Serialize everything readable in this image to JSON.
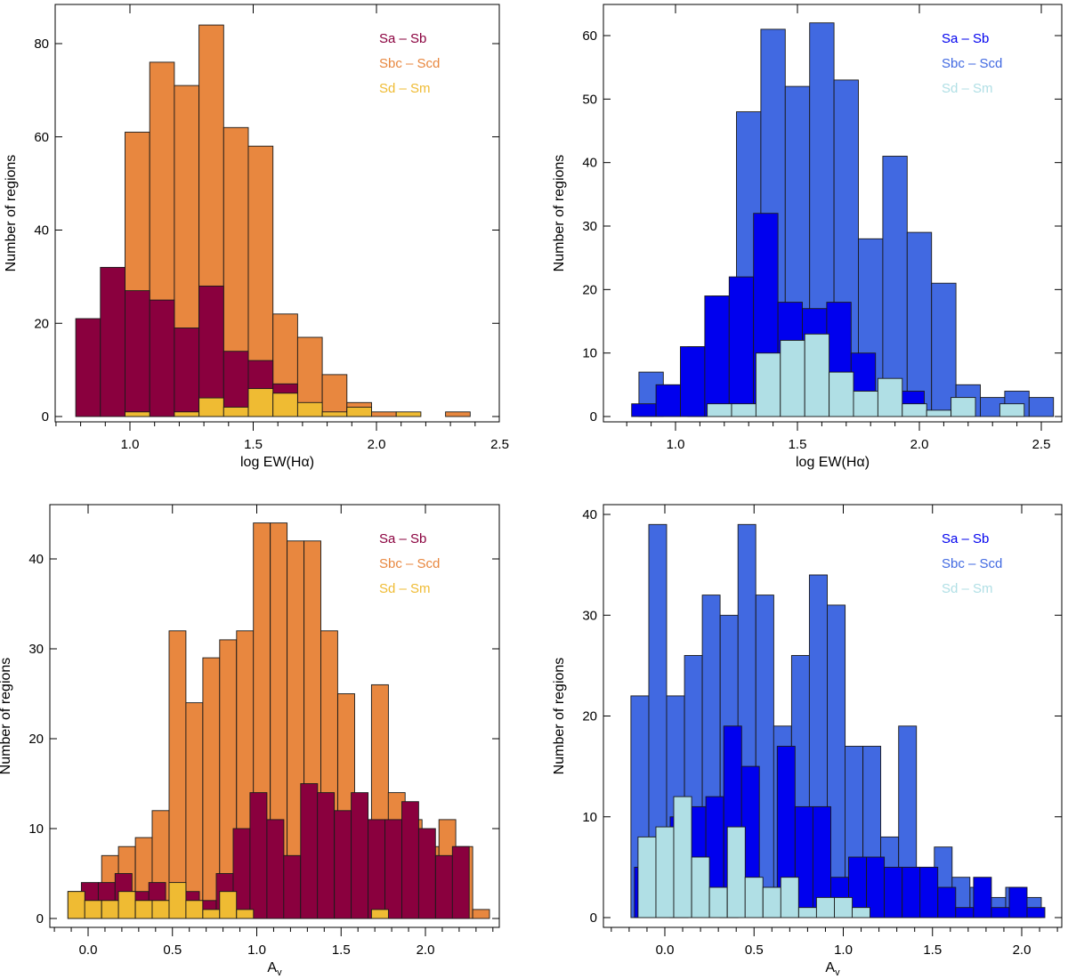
{
  "chart_data": [
    {
      "type": "bar",
      "subtype": "overlaid-histogram",
      "panel": "top-left",
      "title": "",
      "xlabel": "log EW(Hα)",
      "ylabel": "Number of regions",
      "xlim": [
        0.7,
        2.5
      ],
      "ylim": [
        0,
        88
      ],
      "xticks": [
        "1.0",
        "1.5",
        "2.0",
        "2.5"
      ],
      "xtick_values": [
        1.0,
        1.5,
        2.0,
        2.5
      ],
      "yticks": [
        "0",
        "20",
        "40",
        "60",
        "80"
      ],
      "ytick_values": [
        0,
        20,
        40,
        60,
        80
      ],
      "legend_position": "top-right",
      "series": [
        {
          "name": "Sbc – Scd",
          "color": "#E8873F",
          "bin_start": 0.98,
          "bin_width": 0.1,
          "values": [
            61,
            76,
            71,
            84,
            62,
            58,
            22,
            17,
            9,
            3,
            1,
            0,
            0,
            1
          ]
        },
        {
          "name": "Sa – Sb",
          "color": "#8A003E",
          "bin_start": 0.78,
          "bin_width": 0.1,
          "values": [
            21,
            32,
            27,
            25,
            19,
            28,
            14,
            12,
            7,
            2,
            0
          ]
        },
        {
          "name": "Sd – Sm",
          "color": "#EFBB33",
          "bin_start": 0.98,
          "bin_width": 0.1,
          "values": [
            1,
            0,
            1,
            4,
            2,
            6,
            5,
            3,
            1,
            2,
            0,
            1
          ]
        }
      ]
    },
    {
      "type": "bar",
      "subtype": "overlaid-histogram",
      "panel": "top-right",
      "title": "",
      "xlabel": "log EW(Hα)",
      "ylabel": "Number of regions",
      "xlim": [
        0.7,
        2.6
      ],
      "ylim": [
        0,
        65
      ],
      "xticks": [
        "1.0",
        "1.5",
        "2.0",
        "2.5"
      ],
      "xtick_values": [
        1.0,
        1.5,
        2.0,
        2.5
      ],
      "yticks": [
        "0",
        "10",
        "20",
        "30",
        "40",
        "50",
        "60"
      ],
      "ytick_values": [
        0,
        10,
        20,
        30,
        40,
        50,
        60
      ],
      "legend_position": "top-right",
      "series": [
        {
          "name": "Sbc – Scd",
          "color": "#4169E1",
          "bin_start": 0.85,
          "bin_width": 0.1,
          "values": [
            7,
            0,
            11,
            19,
            48,
            61,
            52,
            62,
            53,
            28,
            41,
            29,
            21,
            5,
            3,
            4,
            3
          ]
        },
        {
          "name": "Sa – Sb",
          "color": "#0000EE",
          "bin_start": 0.82,
          "bin_width": 0.1,
          "values": [
            2,
            5,
            11,
            19,
            22,
            32,
            18,
            17,
            18,
            10,
            3,
            4,
            0,
            1
          ]
        },
        {
          "name": "Sd – Sm",
          "color": "#B0DFE5",
          "bin_start": 1.13,
          "bin_width": 0.1,
          "values": [
            2,
            2,
            10,
            12,
            13,
            7,
            4,
            6,
            2,
            1,
            3,
            0,
            2
          ]
        }
      ]
    },
    {
      "type": "bar",
      "subtype": "overlaid-histogram",
      "panel": "bottom-left",
      "title": "",
      "xlabel": "A_v",
      "ylabel": "Number of regions",
      "xlim": [
        -0.23,
        2.45
      ],
      "ylim": [
        0,
        46
      ],
      "xticks": [
        "0.0",
        "0.5",
        "1.0",
        "1.5",
        "2.0"
      ],
      "xtick_values": [
        0.0,
        0.5,
        1.0,
        1.5,
        2.0
      ],
      "yticks": [
        "0",
        "10",
        "20",
        "30",
        "40"
      ],
      "ytick_values": [
        0,
        10,
        20,
        30,
        40
      ],
      "legend_position": "top-right",
      "series": [
        {
          "name": "Sbc – Scd",
          "color": "#E8873F",
          "bin_start": -0.12,
          "bin_width": 0.1,
          "values": [
            3,
            3,
            7,
            8,
            9,
            12,
            32,
            24,
            29,
            31,
            32,
            44,
            44,
            42,
            42,
            32,
            25,
            11,
            26,
            14,
            11,
            8,
            11,
            8,
            1
          ]
        },
        {
          "name": "Sa – Sb",
          "color": "#8A003E",
          "bin_start": -0.04,
          "bin_width": 0.1,
          "values": [
            4,
            4,
            5,
            3,
            4,
            2,
            3,
            2,
            5,
            10,
            14,
            11,
            7,
            15,
            14,
            12,
            14,
            11,
            11,
            13,
            10,
            7,
            8
          ]
        },
        {
          "name": "Sd – Sm",
          "color": "#EFBB33",
          "bin_start": -0.12,
          "bin_width": 0.1,
          "values": [
            3,
            2,
            2,
            3,
            2,
            2,
            4,
            2,
            1,
            3,
            1,
            0,
            0,
            0,
            0,
            0,
            0,
            0,
            1
          ]
        }
      ]
    },
    {
      "type": "bar",
      "subtype": "overlaid-histogram",
      "panel": "bottom-right",
      "title": "",
      "xlabel": "A_v",
      "ylabel": "Number of regions",
      "xlim": [
        -0.3,
        2.25
      ],
      "ylim": [
        0,
        41
      ],
      "xticks": [
        "0.0",
        "0.5",
        "1.0",
        "1.5",
        "2.0"
      ],
      "xtick_values": [
        0.0,
        0.5,
        1.0,
        1.5,
        2.0
      ],
      "yticks": [
        "0",
        "10",
        "20",
        "30",
        "40"
      ],
      "ytick_values": [
        0,
        10,
        20,
        30,
        40
      ],
      "legend_position": "top-right",
      "series": [
        {
          "name": "Sbc – Scd",
          "color": "#4169E1",
          "bin_start": -0.19,
          "bin_width": 0.1,
          "values": [
            22,
            39,
            22,
            26,
            32,
            30,
            39,
            32,
            19,
            26,
            34,
            31,
            17,
            17,
            8,
            19,
            5,
            7,
            4,
            3,
            2,
            3,
            2
          ]
        },
        {
          "name": "Sa – Sb",
          "color": "#0000EE",
          "bin_start": -0.17,
          "bin_width": 0.1,
          "values": [
            5,
            8,
            10,
            11,
            12,
            19,
            15,
            3,
            17,
            11,
            11,
            4,
            6,
            6,
            5,
            5,
            5,
            3,
            1,
            4,
            1,
            3,
            1
          ]
        },
        {
          "name": "Sd – Sm",
          "color": "#B0DFE5",
          "bin_start": -0.15,
          "bin_width": 0.1,
          "values": [
            8,
            9,
            12,
            6,
            3,
            9,
            4,
            3,
            4,
            1,
            2,
            2,
            1
          ]
        }
      ]
    }
  ]
}
